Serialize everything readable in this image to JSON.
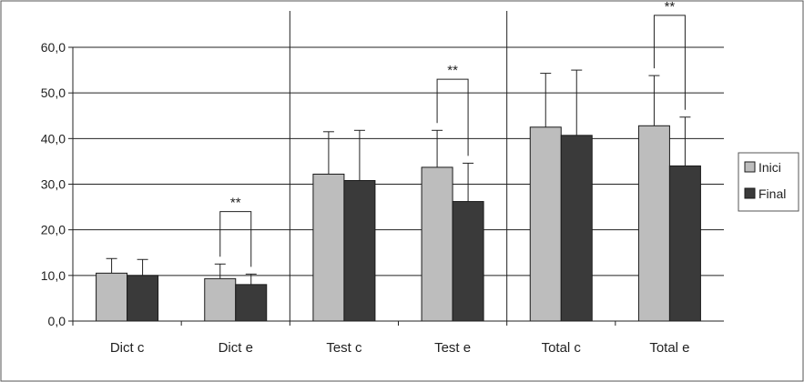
{
  "chart_data": {
    "type": "bar",
    "categories": [
      "Dict c",
      "Dict e",
      "Test c",
      "Test e",
      "Total c",
      "Total e"
    ],
    "series": [
      {
        "name": "Inici",
        "color": "#bdbdbd",
        "values": [
          10.5,
          9.3,
          32.2,
          33.7,
          42.5,
          42.8
        ],
        "error": [
          3.2,
          3.2,
          9.3,
          8.1,
          11.8,
          11.0
        ]
      },
      {
        "name": "Final",
        "color": "#3a3a3a",
        "values": [
          10.0,
          8.0,
          30.8,
          26.2,
          40.7,
          34.0
        ],
        "error": [
          3.5,
          2.3,
          11.0,
          8.4,
          14.3,
          10.7
        ]
      }
    ],
    "y_ticks": [
      "0,0",
      "10,0",
      "20,0",
      "30,0",
      "40,0",
      "50,0",
      "60,0"
    ],
    "ylim": [
      0,
      60
    ],
    "grid": true,
    "group_dividers_after": [
      1,
      3
    ],
    "significance": [
      {
        "category": "Dict e",
        "label": "**",
        "y": 24
      },
      {
        "category": "Test e",
        "label": "**",
        "y": 53
      },
      {
        "category": "Total e",
        "label": "**",
        "y": 67
      }
    ],
    "legend_position": "right"
  }
}
